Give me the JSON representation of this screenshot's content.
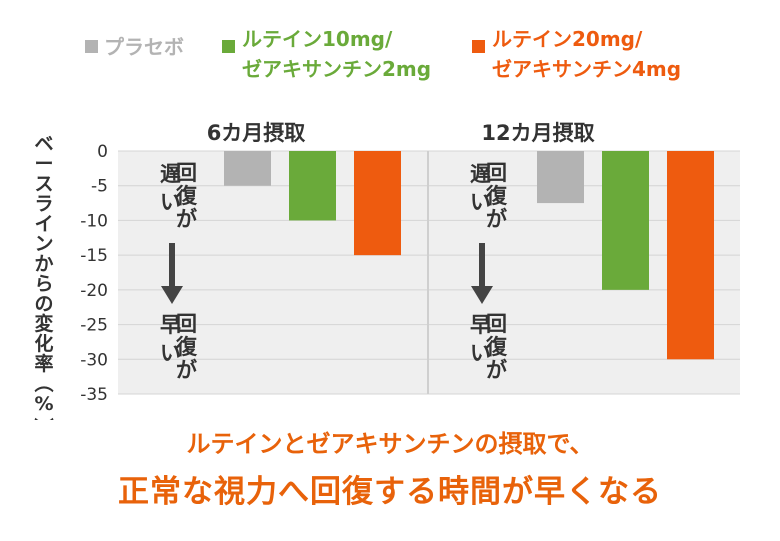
{
  "chart_data": {
    "type": "bar",
    "ylabel": "ベースラインからの変化率（%）",
    "ylim": [
      -35,
      0
    ],
    "yticks": [
      0,
      -5,
      -10,
      -15,
      -20,
      -25,
      -30,
      -35
    ],
    "legend_position": "top",
    "series": [
      {
        "name": "プラセボ",
        "color": "#b3b3b3"
      },
      {
        "name": "ルテイン10mg/\nゼアキサンチン2mg",
        "color": "#6aaa3a"
      },
      {
        "name": "ルテイン20mg/\nゼアキサンチン4mg",
        "color": "#ee5b0f"
      }
    ],
    "panels": [
      {
        "title": "6カ月摂取",
        "values": [
          -5,
          -10,
          -15
        ]
      },
      {
        "title": "12カ月摂取",
        "values": [
          -7.5,
          -20,
          -30
        ]
      }
    ],
    "annotations": {
      "slow": {
        "big": "遅い",
        "small": "回復が"
      },
      "fast": {
        "big": "早い",
        "small": "回復が"
      }
    },
    "grid": true
  },
  "caption": {
    "line1": "ルテインとゼアキサンチンの摂取で、",
    "line2": "正常な視力へ回復する時間が早くなる"
  }
}
